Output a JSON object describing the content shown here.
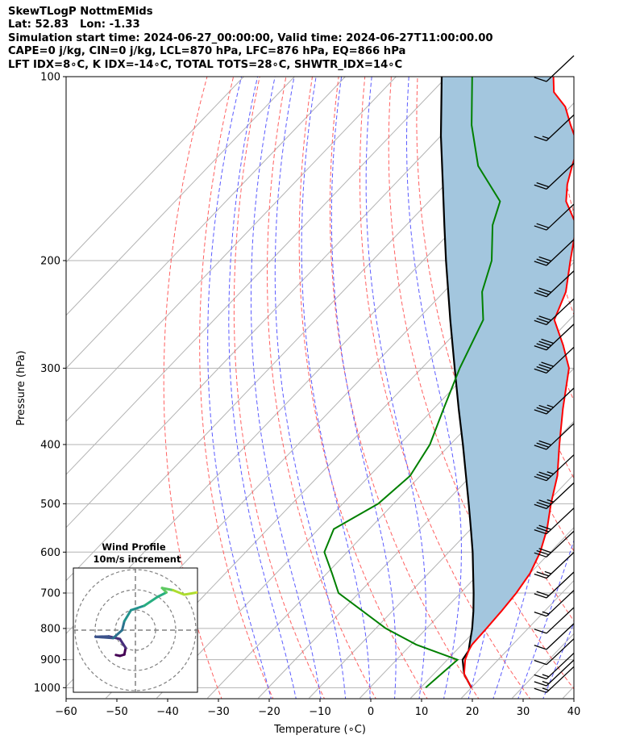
{
  "title_lines": [
    "SkewTLogP NottmEMids",
    "Lat: 52.83   Lon: -1.33",
    "Simulation start time: 2024-06-27_00:00:00, Valid time: 2024-06-27T11:00:00.00",
    "CAPE=0 j/kg, CIN=0 j/kg, LCL=870 hPa, LFC=876 hPa, EQ=866 hPa",
    "LFT IDX=8∘C, K IDX=-14∘C, TOTAL TOTS=28∘C, SHWTR_IDX=14∘C"
  ],
  "chart_data": {
    "type": "skewt",
    "xlabel": "Temperature (∘C)",
    "ylabel": "Pressure (hPa)",
    "xlim": [
      -60,
      40
    ],
    "ylim": [
      1040,
      100
    ],
    "y_scale": "log",
    "x_ticks": [
      -60,
      -50,
      -40,
      -30,
      -20,
      -10,
      0,
      10,
      20,
      30,
      40
    ],
    "x_tick_labels": [
      "−60",
      "−50",
      "−40",
      "−30",
      "−20",
      "−10",
      "0",
      "10",
      "20",
      "30",
      "40"
    ],
    "y_ticks": [
      1000,
      900,
      800,
      700,
      600,
      500,
      400,
      300,
      200,
      100
    ],
    "y_tick_labels": [
      "1000",
      "900",
      "800",
      "700",
      "600",
      "500",
      "400",
      "300",
      "200",
      "100"
    ],
    "grid": true,
    "temperature": [
      [
        1000,
        20.0
      ],
      [
        950,
        16.0
      ],
      [
        900,
        13.5
      ],
      [
        870,
        12.5
      ],
      [
        850,
        12.0
      ],
      [
        800,
        11.8
      ],
      [
        750,
        11.5
      ],
      [
        700,
        11.0
      ],
      [
        650,
        10.0
      ],
      [
        600,
        8.0
      ],
      [
        550,
        5.0
      ],
      [
        500,
        1.0
      ],
      [
        450,
        -3.0
      ],
      [
        400,
        -8.5
      ],
      [
        350,
        -14.5
      ],
      [
        300,
        -21.0
      ],
      [
        275,
        -26.5
      ],
      [
        250,
        -33.0
      ],
      [
        225,
        -36.0
      ],
      [
        200,
        -41.0
      ],
      [
        175,
        -46.5
      ],
      [
        160,
        -53.0
      ],
      [
        150,
        -56.0
      ],
      [
        140,
        -58.5
      ],
      [
        130,
        -61.0
      ],
      [
        120,
        -66.5
      ],
      [
        112,
        -71.0
      ],
      [
        106,
        -76.0
      ],
      [
        100,
        -79.0
      ]
    ],
    "dewpoint": [
      [
        1000,
        11.0
      ],
      [
        950,
        11.5
      ],
      [
        900,
        12.0
      ],
      [
        850,
        1.0
      ],
      [
        800,
        -8.0
      ],
      [
        700,
        -24.0
      ],
      [
        650,
        -29.0
      ],
      [
        600,
        -34.5
      ],
      [
        550,
        -37.0
      ],
      [
        500,
        -33.0
      ],
      [
        450,
        -32.0
      ],
      [
        400,
        -34.0
      ],
      [
        350,
        -38.0
      ],
      [
        300,
        -42.5
      ],
      [
        250,
        -47.0
      ],
      [
        225,
        -52.5
      ],
      [
        200,
        -56.5
      ],
      [
        175,
        -63.0
      ],
      [
        160,
        -66.0
      ],
      [
        140,
        -77.0
      ],
      [
        120,
        -86.0
      ],
      [
        100,
        -95.0
      ]
    ],
    "parcel_profile": [
      [
        1000,
        20.0
      ],
      [
        950,
        16.0
      ],
      [
        900,
        13.0
      ],
      [
        870,
        12.5
      ],
      [
        850,
        11.5
      ],
      [
        800,
        9.0
      ],
      [
        750,
        6.0
      ],
      [
        700,
        2.6
      ],
      [
        650,
        -1.2
      ],
      [
        600,
        -5.3
      ],
      [
        550,
        -10.0
      ],
      [
        500,
        -15.2
      ],
      [
        450,
        -21.0
      ],
      [
        400,
        -27.5
      ],
      [
        350,
        -35.0
      ],
      [
        300,
        -43.5
      ],
      [
        250,
        -53.5
      ],
      [
        200,
        -65.5
      ],
      [
        175,
        -72.5
      ],
      [
        150,
        -80.5
      ],
      [
        125,
        -90.0
      ],
      [
        100,
        -101.0
      ]
    ],
    "shaded_area": "between temperature and parcel profile",
    "wind_barbs": [
      {
        "p": 1000,
        "speed_kt": 15,
        "dir_deg": 240
      },
      {
        "p": 975,
        "speed_kt": 15,
        "dir_deg": 245
      },
      {
        "p": 950,
        "speed_kt": 15,
        "dir_deg": 250
      },
      {
        "p": 900,
        "speed_kt": 10,
        "dir_deg": 265
      },
      {
        "p": 850,
        "speed_kt": 10,
        "dir_deg": 280
      },
      {
        "p": 800,
        "speed_kt": 10,
        "dir_deg": 290
      },
      {
        "p": 750,
        "speed_kt": 15,
        "dir_deg": 300
      },
      {
        "p": 700,
        "speed_kt": 20,
        "dir_deg": 300
      },
      {
        "p": 650,
        "speed_kt": 25,
        "dir_deg": 305
      },
      {
        "p": 600,
        "speed_kt": 30,
        "dir_deg": 305
      },
      {
        "p": 550,
        "speed_kt": 30,
        "dir_deg": 305
      },
      {
        "p": 500,
        "speed_kt": 35,
        "dir_deg": 305
      },
      {
        "p": 450,
        "speed_kt": 35,
        "dir_deg": 305
      },
      {
        "p": 400,
        "speed_kt": 30,
        "dir_deg": 305
      },
      {
        "p": 350,
        "speed_kt": 35,
        "dir_deg": 305
      },
      {
        "p": 300,
        "speed_kt": 40,
        "dir_deg": 305
      },
      {
        "p": 275,
        "speed_kt": 40,
        "dir_deg": 305
      },
      {
        "p": 250,
        "speed_kt": 30,
        "dir_deg": 300
      },
      {
        "p": 225,
        "speed_kt": 30,
        "dir_deg": 300
      },
      {
        "p": 200,
        "speed_kt": 30,
        "dir_deg": 300
      },
      {
        "p": 175,
        "speed_kt": 20,
        "dir_deg": 300
      },
      {
        "p": 150,
        "speed_kt": 20,
        "dir_deg": 300
      },
      {
        "p": 125,
        "speed_kt": 15,
        "dir_deg": 300
      },
      {
        "p": 100,
        "speed_kt": 10,
        "dir_deg": 300
      }
    ],
    "reference_lines": {
      "isotherms_step": 10,
      "dry_adiabats_theta_K": [
        -30,
        -20,
        -10,
        0,
        10,
        20,
        30,
        40,
        50,
        60,
        70,
        80,
        90,
        100,
        110,
        120,
        130
      ],
      "moist_adiabats_start_C": [
        -20,
        -15,
        -10,
        -5,
        0,
        5,
        10,
        15,
        20,
        25,
        30,
        35
      ],
      "mixing_ratio_lines": false
    },
    "colors": {
      "temperature": "#ff0000",
      "dewpoint": "#008000",
      "parcel": "#000000",
      "shade": "#a3c6de",
      "dry_adiabat": "#ff6060",
      "moist_adiabat": "#5b5bff",
      "isotherm": "#b3b3b3",
      "isobar": "#b3b3b3",
      "zero_isotherm": "#9b4bd0"
    },
    "inset": {
      "title": "Wind Profile",
      "subtitle": "10m/s increment",
      "rings_m_s": [
        10,
        20,
        30
      ],
      "hodograph_uv": [
        [
          -4.4,
          -5.6
        ],
        [
          -3.5,
          -5.8
        ],
        [
          -2.5,
          -5.5
        ],
        [
          -2.2,
          -4.0
        ],
        [
          -3.5,
          -2.0
        ],
        [
          -6.0,
          -1.4
        ],
        [
          -9.0,
          -1.5
        ],
        [
          -5.0,
          -1.8
        ],
        [
          -3.0,
          0.0
        ],
        [
          -2.5,
          2.0
        ],
        [
          -1.0,
          4.5
        ],
        [
          2.0,
          5.5
        ],
        [
          5.0,
          7.5
        ],
        [
          7.0,
          8.5
        ],
        [
          6.0,
          9.5
        ],
        [
          8.5,
          9.0
        ],
        [
          11.0,
          8.0
        ],
        [
          14.0,
          8.5
        ],
        [
          17.0,
          8.0
        ],
        [
          17.5,
          9.0
        ]
      ]
    }
  }
}
